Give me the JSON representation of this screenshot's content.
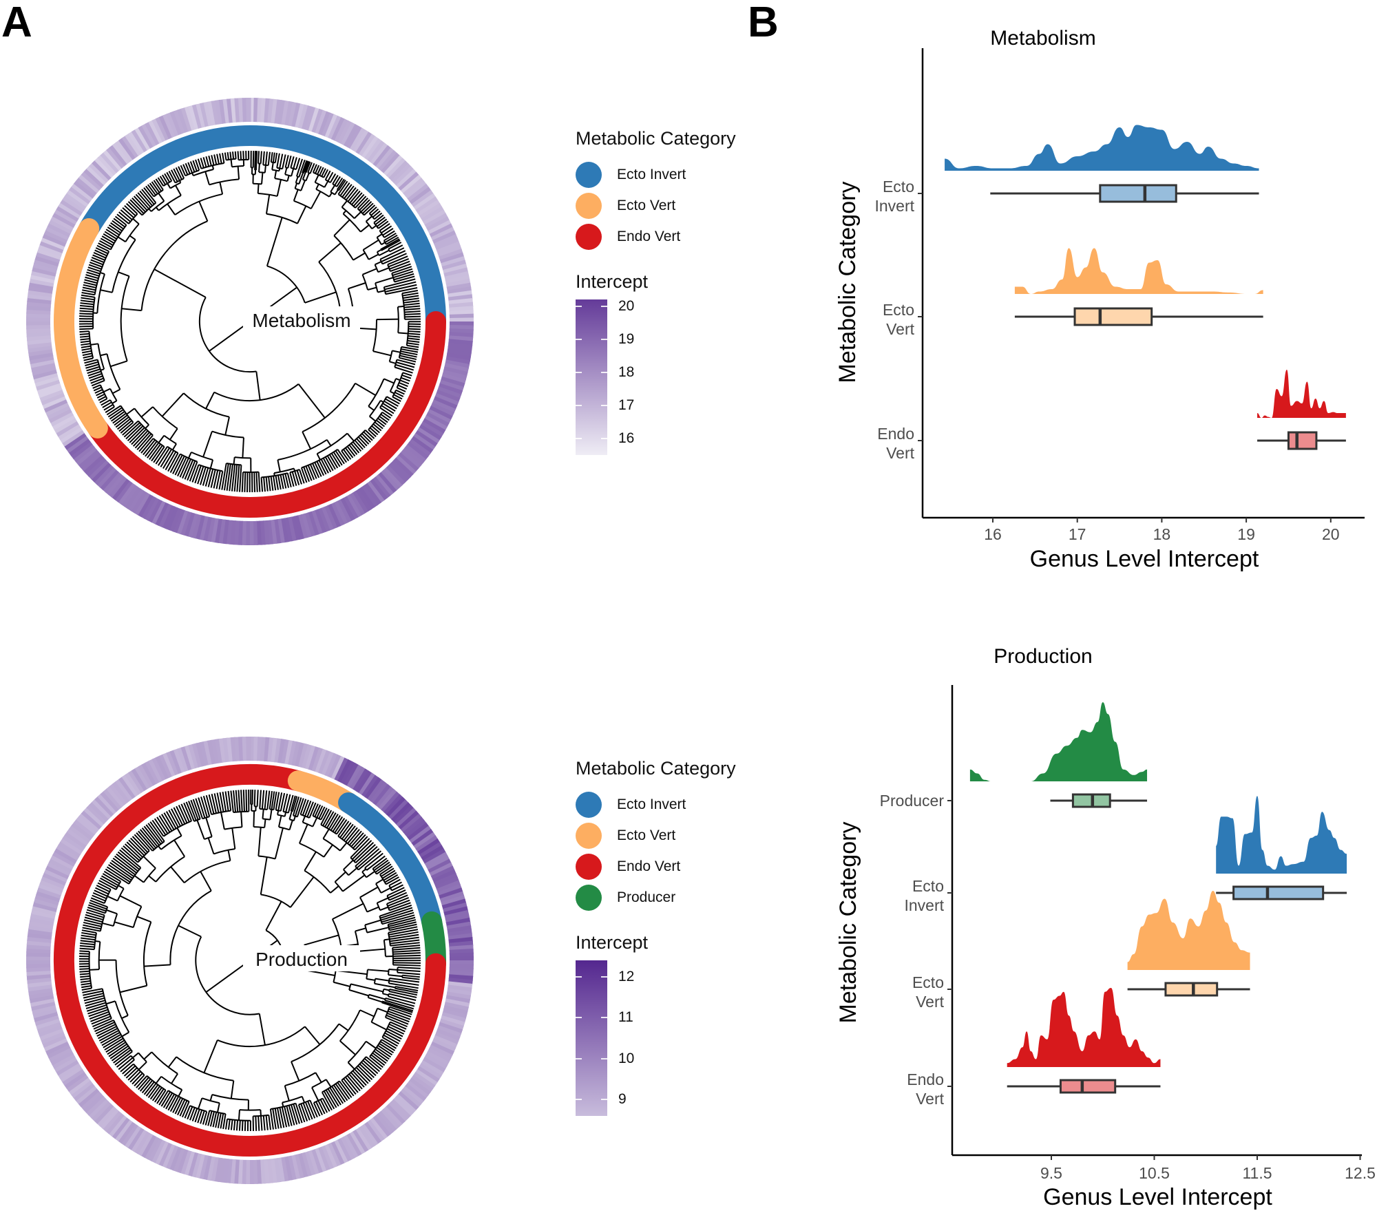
{
  "panels": {
    "a_label": "A",
    "b_label": "B"
  },
  "colors": {
    "ecto_invert": "#2E7AB6",
    "ecto_vert": "#FDAE61",
    "endo_vert": "#D7191C",
    "producer": "#238B45",
    "ecto_invert_box": "#97BDDC",
    "ecto_vert_box": "#FED6AD",
    "endo_vert_box": "#EC8C8E",
    "producer_box": "#92C5A2",
    "intercept_low": "#EFEDF5",
    "intercept_high": "#54278F"
  },
  "trees": [
    {
      "center_label": "Metabolism",
      "category_arcs": [
        {
          "category": "Ecto Invert",
          "start_deg": -150,
          "end_deg": 0
        },
        {
          "category": "Endo Vert",
          "start_deg": 0,
          "end_deg": 145
        },
        {
          "category": "Ecto Vert",
          "start_deg": 145,
          "end_deg": 210
        }
      ],
      "legend": {
        "title": "Metabolic Category",
        "items": [
          {
            "label": "Ecto Invert",
            "color_key": "ecto_invert"
          },
          {
            "label": "Ecto Vert",
            "color_key": "ecto_vert"
          },
          {
            "label": "Endo Vert",
            "color_key": "endo_vert"
          }
        ]
      },
      "colorbar": {
        "title": "Intercept",
        "ticks": [
          "20",
          "19",
          "18",
          "17",
          "16"
        ],
        "range": [
          15.5,
          20.2
        ],
        "tick_values": [
          20,
          19,
          18,
          17,
          16
        ]
      }
    },
    {
      "center_label": "Production",
      "category_arcs": [
        {
          "category": "Endo Vert",
          "start_deg": 170,
          "end_deg": 285
        },
        {
          "category": "Ecto Vert",
          "start_deg": -75,
          "end_deg": -58
        },
        {
          "category": "Ecto Invert",
          "start_deg": -58,
          "end_deg": -12
        },
        {
          "category": "Producer",
          "start_deg": -12,
          "end_deg": 1
        },
        {
          "category": "Endo Vert",
          "start_deg": 1,
          "end_deg": 170
        }
      ],
      "legend": {
        "title": "Metabolic Category",
        "items": [
          {
            "label": "Ecto Invert",
            "color_key": "ecto_invert"
          },
          {
            "label": "Ecto Vert",
            "color_key": "ecto_vert"
          },
          {
            "label": "Endo Vert",
            "color_key": "endo_vert"
          },
          {
            "label": "Producer",
            "color_key": "producer"
          }
        ]
      },
      "colorbar": {
        "title": "Intercept",
        "ticks": [
          "12",
          "11",
          "10",
          "9"
        ],
        "range": [
          8.6,
          12.4
        ],
        "tick_values": [
          12,
          11,
          10,
          9
        ]
      }
    }
  ],
  "chart_data": [
    {
      "type": "raincloud",
      "title": "Metabolism",
      "xlabel": "Genus Level Intercept",
      "ylabel": "Metabolic Category",
      "xlim": [
        15.2,
        20.4
      ],
      "xticks": [
        16,
        17,
        18,
        19,
        20
      ],
      "xtick_labels": [
        "16",
        "17",
        "18",
        "19",
        "20"
      ],
      "categories": [
        {
          "name": "Ecto Invert",
          "tick_label": [
            "Ecto",
            "Invert"
          ],
          "color_key": "ecto_invert",
          "box_color_key": "ecto_invert_box",
          "box": {
            "whisker_low": 15.97,
            "q1": 17.27,
            "median": 17.8,
            "q3": 18.17,
            "whisker_high": 19.15
          },
          "density": {
            "x": [
              15.43,
              15.6,
              15.8,
              16.0,
              16.2,
              16.4,
              16.55,
              16.65,
              16.8,
              17.0,
              17.2,
              17.35,
              17.5,
              17.6,
              17.7,
              17.85,
              18.0,
              18.15,
              18.3,
              18.45,
              18.55,
              18.7,
              18.85,
              19.0,
              19.15
            ],
            "y": [
              0.25,
              0.05,
              0.1,
              0.05,
              0.05,
              0.1,
              0.35,
              0.55,
              0.15,
              0.3,
              0.4,
              0.55,
              0.9,
              0.7,
              0.95,
              0.9,
              0.85,
              0.45,
              0.6,
              0.35,
              0.5,
              0.25,
              0.15,
              0.1,
              0.05
            ]
          }
        },
        {
          "name": "Ecto Vert",
          "tick_label": [
            "Ecto",
            "Vert"
          ],
          "color_key": "ecto_vert",
          "box_color_key": "ecto_vert_box",
          "box": {
            "whisker_low": 16.26,
            "q1": 16.97,
            "median": 17.27,
            "q3": 17.88,
            "whisker_high": 19.2
          },
          "density": {
            "x": [
              16.26,
              16.35,
              16.45,
              16.55,
              16.7,
              16.82,
              16.9,
              17.0,
              17.1,
              17.2,
              17.3,
              17.45,
              17.6,
              17.75,
              17.85,
              17.95,
              18.05,
              18.2,
              18.4,
              18.6,
              18.8,
              19.0,
              19.1,
              19.2
            ],
            "y": [
              0.15,
              0.15,
              0.0,
              0.05,
              0.1,
              0.3,
              0.95,
              0.35,
              0.55,
              0.95,
              0.45,
              0.15,
              0.1,
              0.1,
              0.65,
              0.7,
              0.2,
              0.05,
              0.05,
              0.05,
              0.03,
              0.0,
              0.0,
              0.08
            ]
          }
        },
        {
          "name": "Endo Vert",
          "tick_label": [
            "Endo",
            "Vert"
          ],
          "color_key": "endo_vert",
          "box_color_key": "endo_vert_box",
          "box": {
            "whisker_low": 19.13,
            "q1": 19.5,
            "median": 19.6,
            "q3": 19.83,
            "whisker_high": 20.18
          },
          "density": {
            "x": [
              19.13,
              19.18,
              19.22,
              19.26,
              19.3,
              19.36,
              19.42,
              19.48,
              19.53,
              19.6,
              19.66,
              19.72,
              19.77,
              19.82,
              19.87,
              19.92,
              19.97,
              20.03,
              20.08,
              20.13,
              20.18
            ],
            "y": [
              0.1,
              0.0,
              0.05,
              0.02,
              0.0,
              0.6,
              0.45,
              1.0,
              0.25,
              0.35,
              0.3,
              0.75,
              0.2,
              0.4,
              0.2,
              0.35,
              0.1,
              0.12,
              0.1,
              0.1,
              0.1
            ]
          }
        }
      ]
    },
    {
      "type": "raincloud",
      "title": "Production",
      "xlabel": "Genus Level Intercept",
      "ylabel": "Metabolic Category",
      "xlim": [
        8.7,
        12.5
      ],
      "xticks": [
        9.5,
        10.5,
        11.5,
        12.5
      ],
      "xtick_labels": [
        "9.5",
        "10.5",
        "11.5",
        "12.5"
      ],
      "categories": [
        {
          "name": "Producer",
          "tick_label": [
            "Producer"
          ],
          "color_key": "producer",
          "box_color_key": "producer_box",
          "box": {
            "whisker_low": 9.49,
            "q1": 9.71,
            "median": 9.9,
            "q3": 10.07,
            "whisker_high": 10.43
          },
          "density": {
            "x": [
              8.71,
              8.78,
              8.85,
              8.92,
              9.1,
              9.3,
              9.42,
              9.55,
              9.65,
              9.75,
              9.8,
              9.88,
              9.95,
              10.0,
              10.05,
              10.12,
              10.2,
              10.3,
              10.38,
              10.43
            ],
            "y": [
              0.15,
              0.1,
              0.02,
              0.0,
              0.0,
              0.0,
              0.1,
              0.35,
              0.45,
              0.55,
              0.65,
              0.62,
              0.75,
              1.0,
              0.85,
              0.5,
              0.15,
              0.08,
              0.12,
              0.15
            ]
          }
        },
        {
          "name": "Ecto Invert",
          "tick_label": [
            "Ecto",
            "Invert"
          ],
          "color_key": "ecto_invert",
          "box_color_key": "ecto_invert_box",
          "box": {
            "whisker_low": 11.1,
            "q1": 11.27,
            "median": 11.6,
            "q3": 12.14,
            "whisker_high": 12.37
          },
          "density": {
            "x": [
              11.1,
              11.15,
              11.2,
              11.26,
              11.32,
              11.38,
              11.45,
              11.5,
              11.55,
              11.6,
              11.67,
              11.73,
              11.78,
              11.85,
              11.95,
              12.02,
              12.08,
              12.13,
              12.2,
              12.25,
              12.31,
              12.37
            ],
            "y": [
              0.35,
              0.72,
              0.72,
              0.7,
              0.1,
              0.5,
              0.52,
              0.98,
              0.3,
              0.1,
              0.05,
              0.22,
              0.1,
              0.12,
              0.15,
              0.45,
              0.48,
              0.78,
              0.55,
              0.45,
              0.3,
              0.25
            ]
          }
        },
        {
          "name": "Ecto Vert",
          "tick_label": [
            "Ecto",
            "Vert"
          ],
          "color_key": "ecto_vert",
          "box_color_key": "ecto_vert_box",
          "box": {
            "whisker_low": 10.24,
            "q1": 10.61,
            "median": 10.88,
            "q3": 11.11,
            "whisker_high": 11.43
          },
          "density": {
            "x": [
              10.24,
              10.3,
              10.38,
              10.45,
              10.52,
              10.6,
              10.68,
              10.78,
              10.85,
              10.93,
              11.0,
              11.07,
              11.13,
              11.2,
              11.28,
              11.35,
              11.43
            ],
            "y": [
              0.1,
              0.2,
              0.55,
              0.7,
              0.72,
              0.9,
              0.6,
              0.4,
              0.65,
              0.55,
              0.75,
              1.0,
              0.85,
              0.6,
              0.35,
              0.25,
              0.22
            ]
          }
        },
        {
          "name": "Endo Vert",
          "tick_label": [
            "Endo",
            "Vert"
          ],
          "color_key": "endo_vert",
          "box_color_key": "endo_vert_box",
          "box": {
            "whisker_low": 9.07,
            "q1": 9.59,
            "median": 9.8,
            "q3": 10.12,
            "whisker_high": 10.56
          },
          "density": {
            "x": [
              9.07,
              9.15,
              9.22,
              9.26,
              9.3,
              9.35,
              9.4,
              9.46,
              9.52,
              9.58,
              9.62,
              9.67,
              9.72,
              9.8,
              9.86,
              9.92,
              9.97,
              10.02,
              10.08,
              10.14,
              10.2,
              10.26,
              10.32,
              10.38,
              10.44,
              10.5,
              10.56
            ],
            "y": [
              0.05,
              0.1,
              0.25,
              0.45,
              0.2,
              0.1,
              0.4,
              0.35,
              0.85,
              0.9,
              0.95,
              0.65,
              0.45,
              0.2,
              0.4,
              0.45,
              0.35,
              0.95,
              1.0,
              0.65,
              0.4,
              0.25,
              0.35,
              0.2,
              0.12,
              0.05,
              0.1
            ]
          }
        }
      ]
    }
  ]
}
